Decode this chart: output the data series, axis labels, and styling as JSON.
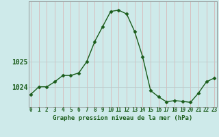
{
  "hours": [
    0,
    1,
    2,
    3,
    4,
    5,
    6,
    7,
    8,
    9,
    10,
    11,
    12,
    13,
    14,
    15,
    16,
    17,
    18,
    19,
    20,
    21,
    22,
    23
  ],
  "pressure": [
    1023.7,
    1024.0,
    1024.0,
    1024.2,
    1024.45,
    1024.45,
    1024.55,
    1025.0,
    1025.8,
    1026.4,
    1027.0,
    1027.05,
    1026.9,
    1026.2,
    1025.2,
    1023.85,
    1023.6,
    1023.4,
    1023.45,
    1023.42,
    1023.38,
    1023.75,
    1024.2,
    1024.35
  ],
  "line_color": "#1a5c1a",
  "marker": "D",
  "markersize": 2.5,
  "bg_color": "#ceeaea",
  "grid_color_x": "#d8b8b8",
  "grid_color_y": "#b8cccc",
  "ylabel_left": [
    "1024",
    "1025"
  ],
  "yticks": [
    1024.0,
    1025.0
  ],
  "ylim": [
    1023.2,
    1027.4
  ],
  "xlabel_label": "Graphe pression niveau de la mer (hPa)",
  "linewidth": 1.0,
  "border_color": "#888888",
  "tick_fontsize": 5.5,
  "ylabel_fontsize": 7.0,
  "xlabel_fontsize": 6.5
}
